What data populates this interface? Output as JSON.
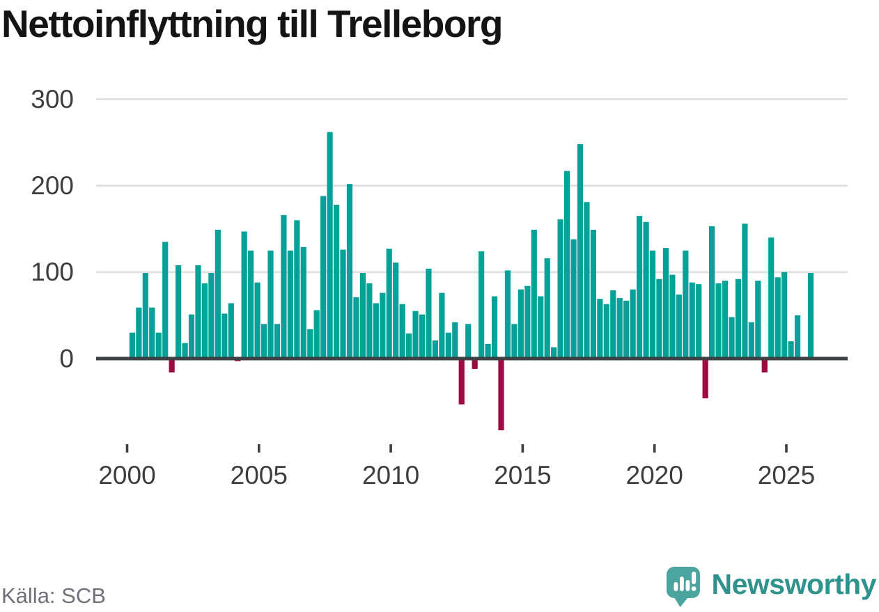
{
  "title": "Nettoinflyttning till Trelleborg",
  "source": "Källa: SCB",
  "brand": {
    "name": "Newsworthy"
  },
  "colors": {
    "positive_bar": "#04a199",
    "negative_bar": "#9d0a41",
    "gridline": "#e2e2e2",
    "zero_axis": "#3f4245",
    "axis_label": "#3d3d3d",
    "title_text": "#141414",
    "source_text": "#6e7178",
    "brand_icon": "#4ba49d",
    "brand_text": "#2f938d"
  },
  "axes": {
    "yticks": [
      "300",
      "200",
      "100",
      "0"
    ],
    "xticks": [
      "2000",
      "2005",
      "2010",
      "2015",
      "2020",
      "2025"
    ]
  },
  "chart_data": {
    "type": "bar",
    "title": "Nettoinflyttning till Trelleborg",
    "xlabel": "",
    "ylabel": "",
    "x_tick_labels": [
      "2000",
      "2005",
      "2010",
      "2015",
      "2020",
      "2025"
    ],
    "y_tick_labels": [
      "0",
      "100",
      "200",
      "300"
    ],
    "ylim": [
      -90,
      310
    ],
    "grid": "horizontal",
    "legend": "none",
    "series_name": "Nettoinflyttning per kvartal",
    "categories": [
      "2000 Q1",
      "2000 Q2",
      "2000 Q3",
      "2000 Q4",
      "2001 Q1",
      "2001 Q2",
      "2001 Q3",
      "2001 Q4",
      "2002 Q1",
      "2002 Q2",
      "2002 Q3",
      "2002 Q4",
      "2003 Q1",
      "2003 Q2",
      "2003 Q3",
      "2003 Q4",
      "2004 Q1",
      "2004 Q2",
      "2004 Q3",
      "2004 Q4",
      "2005 Q1",
      "2005 Q2",
      "2005 Q3",
      "2005 Q4",
      "2006 Q1",
      "2006 Q2",
      "2006 Q3",
      "2006 Q4",
      "2007 Q1",
      "2007 Q2",
      "2007 Q3",
      "2007 Q4",
      "2008 Q1",
      "2008 Q2",
      "2008 Q3",
      "2008 Q4",
      "2009 Q1",
      "2009 Q2",
      "2009 Q3",
      "2009 Q4",
      "2010 Q1",
      "2010 Q2",
      "2010 Q3",
      "2010 Q4",
      "2011 Q1",
      "2011 Q2",
      "2011 Q3",
      "2011 Q4",
      "2012 Q1",
      "2012 Q2",
      "2012 Q3",
      "2012 Q4",
      "2013 Q1",
      "2013 Q2",
      "2013 Q3",
      "2013 Q4",
      "2014 Q1",
      "2014 Q2",
      "2014 Q3",
      "2014 Q4",
      "2015 Q1",
      "2015 Q2",
      "2015 Q3",
      "2015 Q4",
      "2016 Q1",
      "2016 Q2",
      "2016 Q3",
      "2016 Q4",
      "2017 Q1",
      "2017 Q2",
      "2017 Q3",
      "2017 Q4",
      "2018 Q1",
      "2018 Q2",
      "2018 Q3",
      "2018 Q4",
      "2019 Q1",
      "2019 Q2",
      "2019 Q3",
      "2019 Q4",
      "2020 Q1",
      "2020 Q2",
      "2020 Q3",
      "2020 Q4",
      "2021 Q1",
      "2021 Q2",
      "2021 Q3",
      "2021 Q4",
      "2022 Q1",
      "2022 Q2",
      "2022 Q3",
      "2022 Q4",
      "2023 Q1",
      "2023 Q2",
      "2023 Q3",
      "2023 Q4",
      "2024 Q1",
      "2024 Q2",
      "2024 Q3",
      "2024 Q4",
      "2025 Q1",
      "2025 Q2",
      "2025 Q3",
      "2025 Q4"
    ],
    "values": [
      30,
      59,
      99,
      59,
      30,
      135,
      -16,
      108,
      18,
      51,
      108,
      87,
      99,
      149,
      52,
      64,
      -3,
      147,
      125,
      88,
      40,
      125,
      40,
      166,
      125,
      160,
      129,
      34,
      56,
      188,
      262,
      178,
      126,
      202,
      71,
      99,
      87,
      64,
      76,
      127,
      111,
      63,
      29,
      55,
      51,
      104,
      21,
      76,
      30,
      42,
      -53,
      40,
      -12,
      124,
      17,
      72,
      -83,
      102,
      40,
      80,
      84,
      149,
      72,
      116,
      13,
      161,
      217,
      138,
      248,
      181,
      149,
      69,
      63,
      79,
      70,
      67,
      80,
      165,
      158,
      125,
      92,
      128,
      97,
      74,
      125,
      88,
      86,
      -46,
      153,
      87,
      90,
      48,
      92,
      156,
      42,
      90,
      -16,
      140,
      94,
      100,
      20,
      50,
      0,
      99
    ]
  }
}
